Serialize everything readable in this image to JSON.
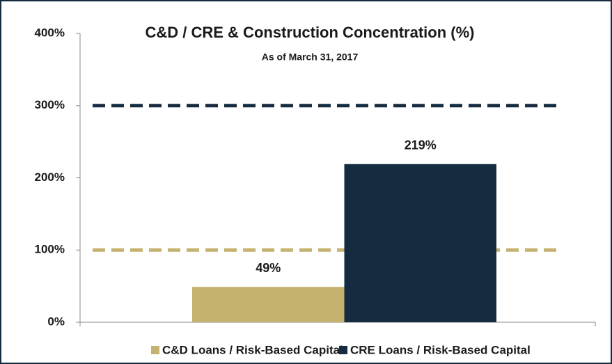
{
  "chart_data": {
    "type": "bar",
    "title": "C&D / CRE & Construction Concentration (%)",
    "subtitle": "As of March 31, 2017",
    "categories": [
      null
    ],
    "series": [
      {
        "name": "C&D Loans / Risk-Based Capital",
        "color": "#c5b26f",
        "values": [
          49
        ],
        "value_labels": [
          "49%"
        ]
      },
      {
        "name": "CRE Loans / Risk-Based Capital",
        "color": "#152b3f",
        "values": [
          219
        ],
        "value_labels": [
          "219%"
        ]
      }
    ],
    "reference_lines": [
      {
        "value": 300,
        "color": "#152b3f"
      },
      {
        "value": 100,
        "color": "#c5b26f"
      }
    ],
    "ylim": [
      0,
      400
    ],
    "yticks": [
      {
        "value": 0,
        "label": "0%"
      },
      {
        "value": 100,
        "label": "100%"
      },
      {
        "value": 200,
        "label": "200%"
      },
      {
        "value": 300,
        "label": "300%"
      },
      {
        "value": 400,
        "label": "400%"
      }
    ],
    "legend": "bottom"
  }
}
